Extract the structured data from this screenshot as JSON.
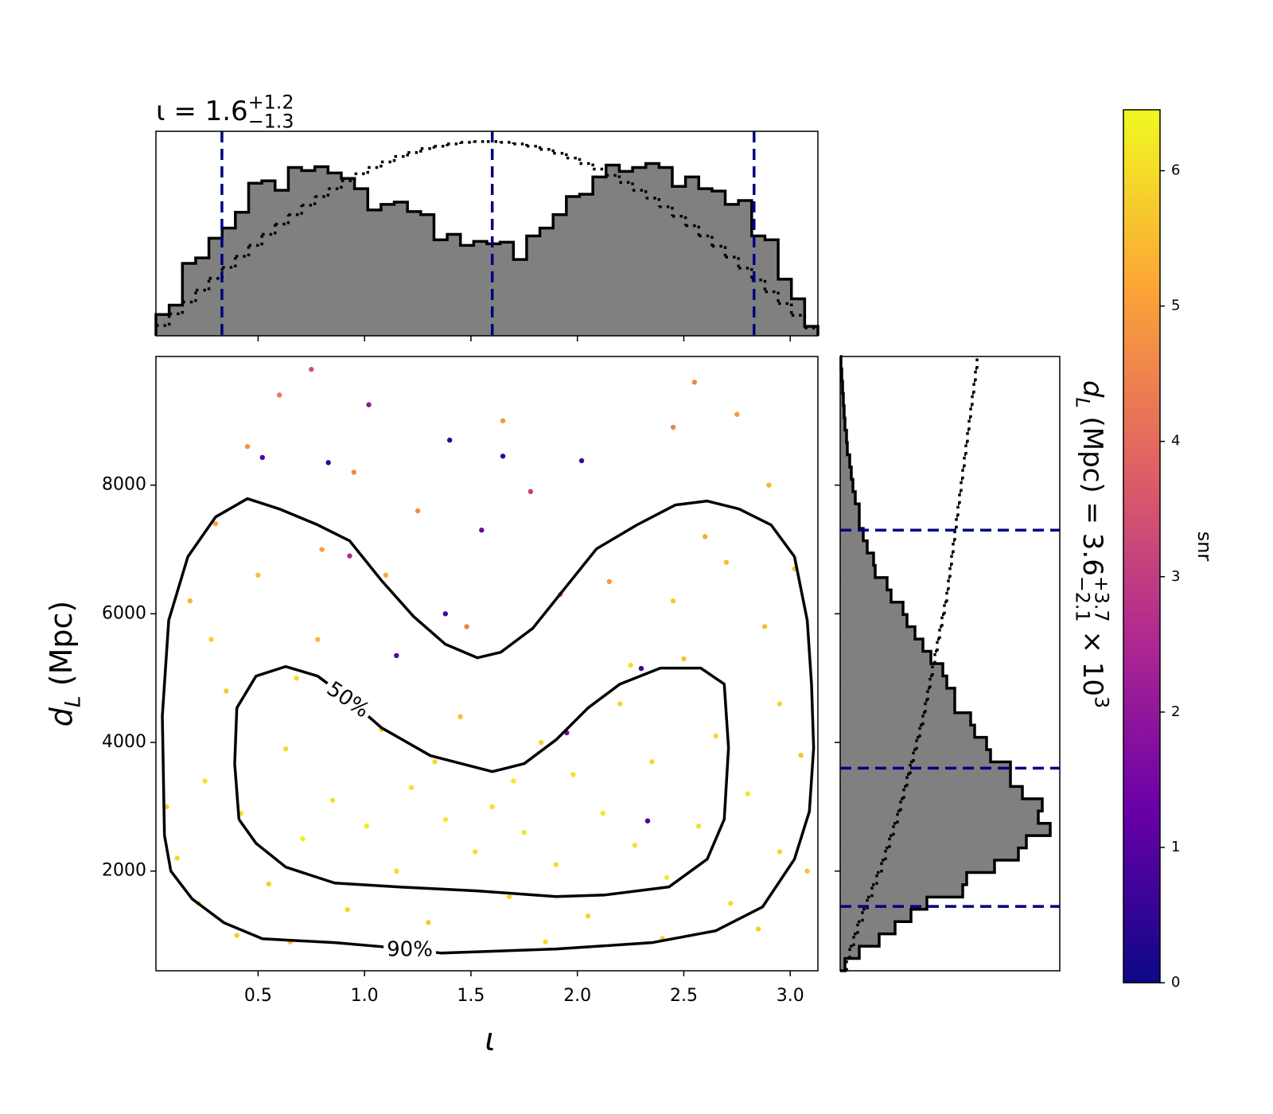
{
  "chart_data": [
    {
      "type": "histogram",
      "title": "ι = 1.6",
      "title_sup": "+1.2",
      "title_sub": "−1.3",
      "bins": [
        0.02,
        0.0822,
        0.1444,
        0.2066,
        0.2688,
        0.331,
        0.3932,
        0.4554,
        0.5176,
        0.5798,
        0.642,
        0.7042,
        0.7664,
        0.8286,
        0.8908,
        0.953,
        1.0152,
        1.0774,
        1.1396,
        1.2018,
        1.264,
        1.3262,
        1.3884,
        1.4506,
        1.5128,
        1.575,
        1.6372,
        1.6994,
        1.7616,
        1.8238,
        1.886,
        1.9482,
        2.0104,
        2.0726,
        2.1348,
        2.197,
        2.2592,
        2.3214,
        2.3836,
        2.4458,
        2.508,
        2.5702,
        2.6324,
        2.6946,
        2.7568,
        2.819,
        2.8812,
        2.9434,
        3.0056,
        3.0678,
        3.13
      ],
      "series": [
        {
          "style": "filled",
          "color": "#808080",
          "values": [
            27,
            39,
            92,
            99,
            124,
            137,
            157,
            194,
            197,
            185,
            214,
            210,
            215,
            207,
            200,
            187,
            160,
            167,
            170,
            158,
            154,
            122,
            129,
            115,
            120,
            117,
            119,
            97,
            127,
            137,
            154,
            177,
            180,
            202,
            217,
            209,
            214,
            219,
            214,
            190,
            202,
            187,
            184,
            167,
            172,
            127,
            122,
            72,
            47,
            12
          ]
        },
        {
          "style": "dotted",
          "color": "#000000",
          "values": [
            13,
            28,
            43,
            58,
            73,
            87,
            101,
            115,
            129,
            142,
            154,
            166,
            177,
            187,
            197,
            206,
            214,
            221,
            228,
            233,
            238,
            241,
            244,
            246,
            247,
            247,
            246,
            244,
            241,
            237,
            232,
            226,
            219,
            212,
            204,
            195,
            185,
            175,
            164,
            152,
            140,
            127,
            114,
            100,
            86,
            71,
            56,
            41,
            26,
            10
          ]
        }
      ],
      "xlim": [
        0.02,
        3.13
      ],
      "ylim": [
        0,
        260
      ],
      "xticks": [
        0.5,
        {
          "value": 1,
          "label": "1.0"
        },
        1.5,
        {
          "value": 2,
          "label": "2.0"
        },
        2.5,
        {
          "value": 3,
          "label": "3.0"
        }
      ],
      "reference_lines": [
        0.33,
        1.6,
        2.83
      ],
      "reference_color": "#000080"
    },
    {
      "type": "scatter",
      "xlabel": "ι",
      "ylabel": "d",
      "ylabel_sub": "L",
      "ylabel_rest": " (Mpc)",
      "x": [
        0.12,
        0.25,
        0.35,
        0.42,
        0.55,
        0.63,
        0.71,
        0.78,
        0.85,
        0.92,
        1.01,
        1.08,
        1.15,
        1.22,
        1.3,
        1.38,
        1.45,
        1.52,
        1.6,
        1.68,
        1.75,
        1.83,
        1.9,
        1.98,
        2.05,
        2.12,
        2.2,
        2.27,
        2.35,
        2.42,
        2.5,
        2.57,
        2.65,
        2.72,
        2.8,
        2.88,
        2.95,
        3.05,
        0.18,
        0.3,
        0.45,
        0.6,
        0.8,
        0.95,
        1.1,
        1.25,
        1.4,
        1.55,
        1.65,
        1.78,
        2.02,
        2.15,
        2.3,
        2.45,
        2.6,
        2.75,
        2.9,
        3.02,
        0.52,
        0.83,
        1.02,
        1.38,
        0.93,
        1.15,
        2.33,
        1.95,
        0.4,
        0.65,
        1.2,
        1.85,
        2.4,
        2.85,
        3.08,
        0.07,
        0.28,
        0.5,
        0.68,
        0.88,
        1.33,
        1.7,
        2.25,
        2.45,
        2.7,
        2.95,
        0.22,
        1.48,
        1.92,
        0.75,
        1.65,
        2.55
      ],
      "values": [
        2200,
        3400,
        4800,
        2900,
        1800,
        3900,
        2500,
        5600,
        3100,
        1400,
        2700,
        4200,
        2000,
        3300,
        1200,
        2800,
        4400,
        2300,
        3000,
        1600,
        2600,
        4000,
        2100,
        3500,
        1300,
        2900,
        4600,
        2400,
        3700,
        1900,
        5300,
        2700,
        4100,
        1500,
        3200,
        5800,
        2300,
        3800,
        6200,
        7400,
        8600,
        9400,
        7000,
        8200,
        6600,
        7600,
        8700,
        7300,
        8450,
        7900,
        8380,
        6500,
        5150,
        8900,
        7200,
        9100,
        8000,
        6700,
        8430,
        8350,
        9250,
        6000,
        6900,
        5350,
        2780,
        4150,
        1000,
        900,
        800,
        900,
        950,
        1100,
        2000,
        3000,
        5600,
        6600,
        5000,
        4700,
        3700,
        3400,
        5200,
        6200,
        6800,
        4600,
        1500,
        5800,
        6300,
        9800,
        9000,
        9600
      ],
      "color_values": [
        5.9,
        6.1,
        5.7,
        6.2,
        5.8,
        6.0,
        6.3,
        5.4,
        6.1,
        5.9,
        6.2,
        5.8,
        6.0,
        6.1,
        5.7,
        6.2,
        5.5,
        6.0,
        6.1,
        5.9,
        6.2,
        5.8,
        6.0,
        6.1,
        5.8,
        6.2,
        5.9,
        6.1,
        6.0,
        6.2,
        5.6,
        6.1,
        5.9,
        6.0,
        6.2,
        5.5,
        5.9,
        5.7,
        5.3,
        5.1,
        4.8,
        4.3,
        5.0,
        4.6,
        5.2,
        4.7,
        0.4,
        1.3,
        0.5,
        3.0,
        0.6,
        4.9,
        0.7,
        4.5,
        5.2,
        4.9,
        5.4,
        5.6,
        0.9,
        0.5,
        2.0,
        0.8,
        2.6,
        1.0,
        0.8,
        1.5,
        5.8,
        5.6,
        5.9,
        6.0,
        5.7,
        5.8,
        5.6,
        5.7,
        5.8,
        5.6,
        6.0,
        6.1,
        6.0,
        6.2,
        6.0,
        5.7,
        5.5,
        5.9,
        5.9,
        4.4,
        4.2,
        3.5,
        4.8,
        4.6
      ],
      "contours": [
        {
          "label": "50%",
          "x": [
            0.41,
            0.39,
            0.4,
            0.49,
            0.63,
            0.78,
            0.93,
            1.08,
            1.31,
            1.6,
            1.75,
            1.9,
            2.05,
            2.2,
            2.39,
            2.58,
            2.69,
            2.71,
            2.69,
            2.61,
            2.43,
            2.13,
            1.9,
            1.53,
            1.16,
            0.86,
            0.63,
            0.49,
            0.41
          ],
          "values": [
            2804,
            3670,
            4536,
            5031,
            5180,
            5031,
            4660,
            4227,
            3794,
            3546,
            3670,
            4041,
            4536,
            4907,
            5155,
            5155,
            4907,
            3918,
            2804,
            2186,
            1753,
            1629,
            1604,
            1691,
            1753,
            1814,
            2062,
            2433,
            2804
          ]
        },
        {
          "label": "90%",
          "x": [
            0.06,
            0.05,
            0.08,
            0.17,
            0.3,
            0.45,
            0.6,
            0.78,
            0.93,
            1.08,
            1.23,
            1.38,
            1.53,
            1.64,
            1.79,
            1.94,
            2.09,
            2.28,
            2.46,
            2.61,
            2.76,
            2.91,
            3.02,
            3.08,
            3.1,
            3.11,
            3.09,
            3.02,
            2.87,
            2.65,
            2.35,
            1.9,
            1.36,
            1.08,
            0.86,
            0.52,
            0.34,
            0.19,
            0.09,
            0.06
          ],
          "values": [
            2557,
            4412,
            5897,
            6887,
            7505,
            7790,
            7629,
            7382,
            7134,
            6516,
            5959,
            5526,
            5316,
            5402,
            5773,
            6392,
            7010,
            7382,
            7691,
            7753,
            7629,
            7382,
            6887,
            5897,
            4907,
            3918,
            2928,
            2186,
            1443,
            1072,
            887,
            788,
            726,
            825,
            887,
            948,
            1196,
            1567,
            2000,
            2557
          ]
        }
      ],
      "contour_color": "#000000",
      "xlim": [
        0.02,
        3.13
      ],
      "ylim": [
        450,
        10000
      ],
      "xticks": [
        0.5,
        {
          "value": 1,
          "label": "1.0"
        },
        1.5,
        {
          "value": 2,
          "label": "2.0"
        },
        2.5,
        {
          "value": 3,
          "label": "3.0"
        }
      ],
      "yticks": [
        2000,
        4000,
        6000,
        8000
      ]
    },
    {
      "type": "histogram",
      "orientation": "horizontal",
      "label": "d",
      "label_sub": "L",
      "label_text": " (Mpc) = 3.6",
      "label_sup": "+3.7",
      "label_sub2": "−2.1",
      "label_tail": " × 10",
      "label_exp": "3",
      "bins": [
        450,
        641,
        832,
        1023,
        1214,
        1405,
        1596,
        1787,
        1978,
        2169,
        2360,
        2551,
        2742,
        2933,
        3124,
        3315,
        3506,
        3697,
        3888,
        4079,
        4270,
        4461,
        4652,
        4843,
        5034,
        5225,
        5416,
        5607,
        5798,
        5989,
        6180,
        6371,
        6562,
        6753,
        6944,
        7135,
        7326,
        7517,
        7708,
        7899,
        8090,
        8281,
        8472,
        8663,
        8854,
        9045,
        9236,
        9427,
        9618,
        9809,
        10000
      ],
      "series": [
        {
          "style": "filled",
          "color": "#808080",
          "values": [
            6,
            24,
            49,
            69,
            89,
            109,
            154,
            159,
            194,
            224,
            234,
            264,
            249,
            254,
            229,
            214,
            214,
            189,
            184,
            169,
            164,
            144,
            144,
            134,
            129,
            114,
            104,
            94,
            84,
            79,
            64,
            59,
            44,
            42,
            34,
            29,
            24,
            24,
            19,
            16,
            14,
            12,
            9,
            8,
            6,
            5,
            4,
            3,
            2,
            1
          ]
        },
        {
          "style": "dotted",
          "color": "#000000",
          "values": [
            8,
            12,
            17,
            22,
            28,
            34,
            40,
            46,
            52,
            57,
            62,
            67,
            72,
            76,
            80,
            84,
            88,
            92,
            96,
            100,
            104,
            107,
            110,
            113,
            116,
            119,
            122,
            125,
            128,
            131,
            134,
            136,
            138,
            140,
            142,
            144,
            146,
            148,
            150,
            152,
            154,
            156,
            158,
            160,
            162,
            164,
            166,
            168,
            170,
            172
          ]
        }
      ],
      "xlim": [
        0,
        276
      ],
      "ylim": [
        450,
        10000
      ],
      "yticks": [
        2000,
        4000,
        6000,
        8000
      ],
      "reference_lines": [
        1450,
        3600,
        7300
      ],
      "reference_color": "#000080"
    },
    {
      "type": "colorbar",
      "label": "snr",
      "clim": [
        0,
        6.45
      ],
      "ticks": [
        0,
        1,
        2,
        3,
        4,
        5,
        6
      ],
      "colormap": [
        "#0d0887",
        "#6a00a8",
        "#b12a90",
        "#e16462",
        "#fca636",
        "#f0f921"
      ]
    }
  ]
}
